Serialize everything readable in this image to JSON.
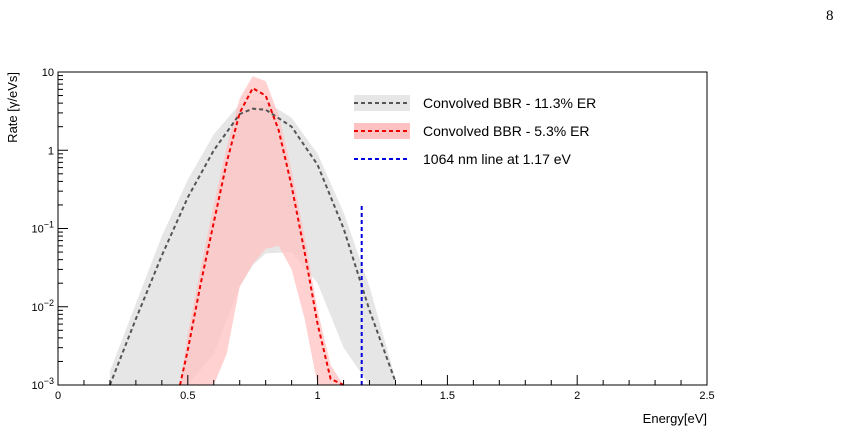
{
  "page": {
    "number": "8"
  },
  "chart_data": {
    "type": "line",
    "title": "",
    "xlabel": "Energy[eV]",
    "ylabel": "Rate [γ/eVs]",
    "xlim": [
      0,
      2.5
    ],
    "ylim": [
      0.001,
      10
    ],
    "yscale": "log",
    "grid": false,
    "legend_position": "top-right",
    "x_ticks": [
      {
        "value": 0,
        "label": "0"
      },
      {
        "value": 0.5,
        "label": "0.5"
      },
      {
        "value": 1,
        "label": "1"
      },
      {
        "value": 1.5,
        "label": "1.5"
      },
      {
        "value": 2,
        "label": "2"
      },
      {
        "value": 2.5,
        "label": "2.5"
      }
    ],
    "y_ticks": [
      {
        "value": 10,
        "base": "10",
        "exp": ""
      },
      {
        "value": 1,
        "base": "1",
        "exp": ""
      },
      {
        "value": 0.1,
        "base": "10",
        "exp": "−1"
      },
      {
        "value": 0.01,
        "base": "10",
        "exp": "−2"
      },
      {
        "value": 0.001,
        "base": "10",
        "exp": "−3"
      }
    ],
    "series": [
      {
        "name": "Convolved BBR - 11.3% ER",
        "color": "#555555",
        "band_color": "#e6e6e6",
        "style": "dashed",
        "x": [
          0.2,
          0.3,
          0.4,
          0.5,
          0.6,
          0.7,
          0.75,
          0.8,
          0.9,
          1.0,
          1.1,
          1.2,
          1.3
        ],
        "y": [
          0.001,
          0.007,
          0.045,
          0.25,
          1.0,
          2.9,
          3.4,
          3.3,
          2.0,
          0.65,
          0.1,
          0.009,
          0.0011
        ],
        "upper": [
          0.0015,
          0.011,
          0.08,
          0.42,
          1.6,
          3.9,
          4.4,
          4.2,
          2.6,
          0.9,
          0.16,
          0.018,
          0.0012
        ],
        "lower": [
          0.001,
          0.001,
          0.001,
          0.001,
          0.0025,
          0.018,
          0.034,
          0.048,
          0.05,
          0.02,
          0.003,
          0.001,
          0.001
        ]
      },
      {
        "name": "Convolved BBR - 5.3% ER",
        "color": "#ee0000",
        "band_color": "#ffc2c2",
        "style": "dashed",
        "x": [
          0.47,
          0.5,
          0.55,
          0.6,
          0.65,
          0.7,
          0.75,
          0.8,
          0.85,
          0.9,
          0.95,
          1.0,
          1.05,
          1.1
        ],
        "y": [
          0.001,
          0.0028,
          0.02,
          0.12,
          0.7,
          3.0,
          6.2,
          5.0,
          1.8,
          0.35,
          0.05,
          0.006,
          0.0012,
          0.001
        ],
        "upper": [
          0.001,
          0.0045,
          0.032,
          0.2,
          1.1,
          4.6,
          8.8,
          7.6,
          2.8,
          0.55,
          0.08,
          0.009,
          0.0018,
          0.001
        ],
        "lower": [
          0.001,
          0.001,
          0.001,
          0.001,
          0.0025,
          0.018,
          0.035,
          0.055,
          0.06,
          0.03,
          0.007,
          0.001,
          0.001,
          0.001
        ]
      },
      {
        "name": "1064 nm line at 1.17 eV",
        "color": "#0000dd",
        "style": "dashed",
        "x": [
          1.17,
          1.17
        ],
        "y": [
          0.001,
          0.2
        ]
      }
    ]
  }
}
